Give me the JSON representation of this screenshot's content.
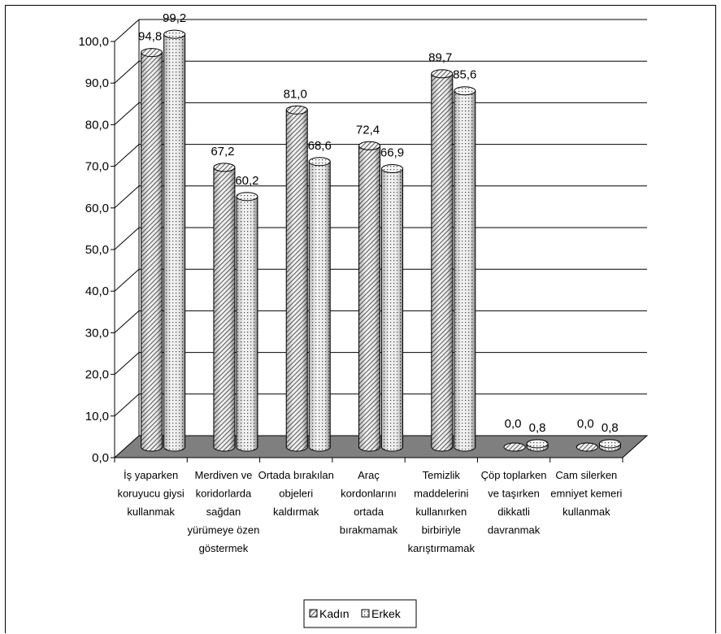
{
  "chart_data": {
    "type": "bar",
    "style": "3d-cylinder",
    "title": "",
    "xlabel": "",
    "ylabel": "",
    "ylim": [
      0,
      100
    ],
    "y_ticks": [
      "0,0",
      "10,0",
      "20,0",
      "30,0",
      "40,0",
      "50,0",
      "60,0",
      "70,0",
      "80,0",
      "90,0",
      "100,0"
    ],
    "grid": true,
    "legend_position": "bottom",
    "categories": [
      [
        "İş yaparken",
        "koruyucu giysi",
        "kullanmak"
      ],
      [
        "Merdiven ve",
        "koridorlarda",
        "sağdan",
        "yürümeye özen",
        "göstermek"
      ],
      [
        "Ortada bırakılan",
        "objeleri",
        "kaldırmak"
      ],
      [
        "Araç",
        "kordonlarını",
        "ortada",
        "bırakmamak"
      ],
      [
        "Temizlik",
        "maddelerini",
        "kullanırken",
        "birbiriyle",
        "karıştırmamak"
      ],
      [
        "Çöp toplarken",
        "ve taşırken",
        "dikkatli",
        "davranmak"
      ],
      [
        "Cam silerken",
        "emniyet kemeri",
        "kullanmak"
      ]
    ],
    "series": [
      {
        "name": "Kadın",
        "values": [
          94.8,
          67.2,
          81.0,
          72.4,
          89.7,
          0.0,
          0.0
        ],
        "labels": [
          "94,8",
          "67,2",
          "81,0",
          "72,4",
          "89,7",
          "0,0",
          "0,0"
        ],
        "pattern": "diagonal-hatch"
      },
      {
        "name": "Erkek",
        "values": [
          99.2,
          60.2,
          68.6,
          66.9,
          85.6,
          0.8,
          0.8
        ],
        "labels": [
          "99,2",
          "60,2",
          "68,6",
          "66,9",
          "85,6",
          "0,8",
          "0,8"
        ],
        "pattern": "dotted"
      }
    ],
    "colors": {
      "floor": "#7f7f7f",
      "bar_fill": "#e6e6e6",
      "grid": "#000000"
    }
  }
}
